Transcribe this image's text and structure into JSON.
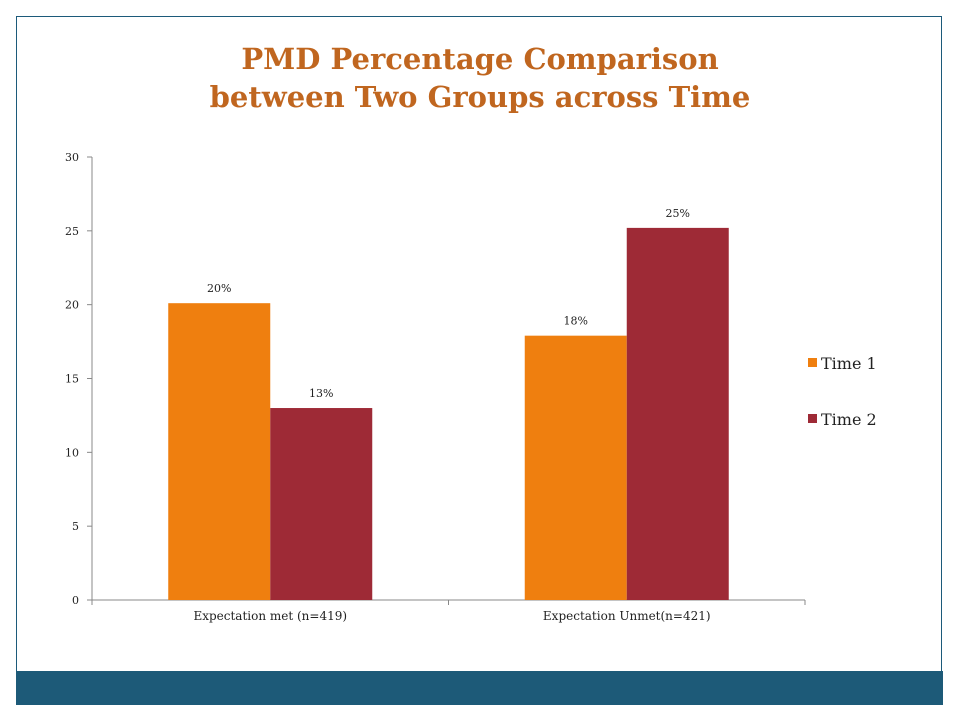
{
  "slide": {
    "title_line1": "PMD Percentage Comparison",
    "title_line2": "between Two Groups across Time",
    "footer_color": "#1d5a78",
    "title_color": "#c0661f"
  },
  "chart_data": {
    "type": "bar",
    "title": "PMD Percentage Comparison between Two Groups across Time",
    "xlabel": "",
    "ylabel": "",
    "categories": [
      "Expectation met (n=419)",
      "Expectation Unmet(n=421)"
    ],
    "series": [
      {
        "name": "Time 1",
        "values": [
          20.1,
          17.9
        ],
        "labels": [
          "20%",
          "18%"
        ],
        "color": "#ef7f0f"
      },
      {
        "name": "Time 2",
        "values": [
          13.0,
          25.2
        ],
        "labels": [
          "13%",
          "25%"
        ],
        "color": "#9e2a36"
      }
    ],
    "ylim": [
      0,
      30
    ],
    "yticks": [
      0,
      5,
      10,
      15,
      20,
      25,
      30
    ],
    "grid": false,
    "legend_position": "right"
  }
}
